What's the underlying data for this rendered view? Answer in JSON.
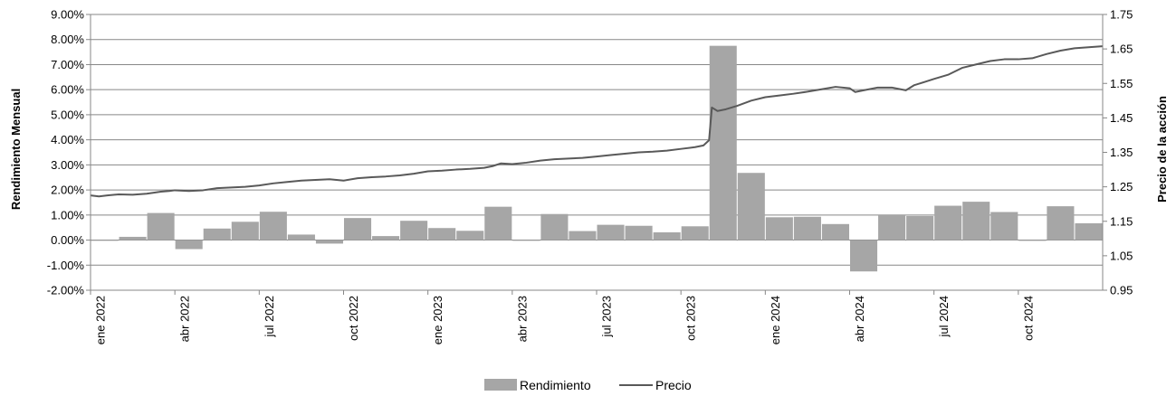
{
  "chart_data": {
    "type": "bar+line",
    "title": "",
    "y_left": {
      "label": "Rendimiento Mensual",
      "lim": [
        -0.02,
        0.09
      ],
      "ticks": [
        -0.02,
        -0.01,
        0.0,
        0.01,
        0.02,
        0.03,
        0.04,
        0.05,
        0.06,
        0.07,
        0.08,
        0.09
      ],
      "tick_labels": [
        "-2.00%",
        "-1.00%",
        "0.00%",
        "1.00%",
        "2.00%",
        "3.00%",
        "4.00%",
        "5.00%",
        "6.00%",
        "7.00%",
        "8.00%",
        "9.00%"
      ]
    },
    "y_right": {
      "label": "Precio de la acción",
      "lim": [
        0.95,
        1.75
      ],
      "ticks": [
        0.95,
        1.05,
        1.15,
        1.25,
        1.35,
        1.45,
        1.55,
        1.65,
        1.75
      ],
      "tick_labels": [
        "0.95",
        "1.05",
        "1.15",
        "1.25",
        "1.35",
        "1.45",
        "1.55",
        "1.65",
        "1.75"
      ]
    },
    "x_tick_labels": [
      {
        "month": 0,
        "label": "ene 2022"
      },
      {
        "month": 3,
        "label": "abr 2022"
      },
      {
        "month": 6,
        "label": "jul 2022"
      },
      {
        "month": 9,
        "label": "oct 2022"
      },
      {
        "month": 12,
        "label": "ene 2023"
      },
      {
        "month": 15,
        "label": "abr 2023"
      },
      {
        "month": 18,
        "label": "jul 2023"
      },
      {
        "month": 21,
        "label": "oct 2023"
      },
      {
        "month": 24,
        "label": "ene 2024"
      },
      {
        "month": 27,
        "label": "abr 2024"
      },
      {
        "month": 30,
        "label": "jul 2024"
      },
      {
        "month": 33,
        "label": "oct 2024"
      }
    ],
    "months": [
      "ene 2022",
      "feb 2022",
      "mar 2022",
      "abr 2022",
      "may 2022",
      "jun 2022",
      "jul 2022",
      "ago 2022",
      "sep 2022",
      "oct 2022",
      "nov 2022",
      "dic 2022",
      "ene 2023",
      "feb 2023",
      "mar 2023",
      "abr 2023",
      "may 2023",
      "jun 2023",
      "jul 2023",
      "ago 2023",
      "sep 2023",
      "oct 2023",
      "nov 2023",
      "dic 2023",
      "ene 2024",
      "feb 2024",
      "mar 2024",
      "abr 2024",
      "may 2024",
      "jun 2024",
      "jul 2024",
      "ago 2024",
      "sep 2024",
      "oct 2024",
      "nov 2024",
      "dic 2024"
    ],
    "series": [
      {
        "name": "Rendimiento",
        "type": "bar",
        "axis": "left",
        "color": "#a6a6a6",
        "values": [
          0.0,
          0.0013,
          0.0108,
          -0.0036,
          0.0046,
          0.0073,
          0.0113,
          0.0022,
          -0.0014,
          0.0088,
          0.0016,
          0.0077,
          0.0048,
          0.0037,
          0.0133,
          0.0,
          0.0104,
          0.0036,
          0.0061,
          0.0057,
          0.0031,
          0.0055,
          0.0775,
          0.0268,
          0.0091,
          0.0093,
          0.0064,
          -0.0125,
          0.0099,
          0.0096,
          0.0137,
          0.0153,
          0.0112,
          -0.0003,
          0.0135,
          0.0067
        ]
      },
      {
        "name": "Precio",
        "type": "line",
        "axis": "right",
        "color": "#595959",
        "x": [
          0.0,
          0.3,
          0.6,
          1.0,
          1.5,
          2.0,
          2.5,
          2.8,
          3.0,
          3.5,
          4.0,
          4.5,
          5.0,
          5.5,
          6.0,
          6.5,
          7.0,
          7.5,
          8.0,
          8.5,
          9.0,
          9.5,
          10.0,
          10.5,
          11.0,
          11.5,
          12.0,
          12.5,
          13.0,
          13.5,
          14.0,
          14.3,
          14.6,
          15.0,
          15.5,
          16.0,
          16.5,
          17.0,
          17.5,
          18.0,
          18.5,
          19.0,
          19.5,
          20.0,
          20.5,
          21.0,
          21.5,
          21.8,
          22.0,
          22.1,
          22.3,
          22.6,
          23.0,
          23.5,
          24.0,
          24.5,
          25.0,
          25.5,
          26.0,
          26.5,
          27.0,
          27.2,
          27.5,
          28.0,
          28.5,
          29.0,
          29.3,
          29.7,
          30.0,
          30.5,
          31.0,
          31.5,
          32.0,
          32.5,
          33.0,
          33.5,
          34.0,
          34.5,
          35.0,
          35.5,
          36.0
        ],
        "values": [
          1.225,
          1.222,
          1.225,
          1.228,
          1.227,
          1.23,
          1.236,
          1.238,
          1.24,
          1.238,
          1.24,
          1.246,
          1.248,
          1.25,
          1.254,
          1.26,
          1.264,
          1.268,
          1.27,
          1.272,
          1.268,
          1.275,
          1.278,
          1.28,
          1.283,
          1.288,
          1.295,
          1.297,
          1.3,
          1.302,
          1.305,
          1.31,
          1.318,
          1.316,
          1.32,
          1.326,
          1.33,
          1.332,
          1.334,
          1.338,
          1.342,
          1.346,
          1.35,
          1.352,
          1.355,
          1.36,
          1.365,
          1.37,
          1.385,
          1.48,
          1.47,
          1.475,
          1.485,
          1.5,
          1.51,
          1.515,
          1.52,
          1.526,
          1.533,
          1.54,
          1.536,
          1.525,
          1.53,
          1.538,
          1.538,
          1.53,
          1.545,
          1.555,
          1.563,
          1.575,
          1.595,
          1.605,
          1.615,
          1.62,
          1.62,
          1.623,
          1.635,
          1.645,
          1.652,
          1.655,
          1.658
        ]
      }
    ],
    "legend": {
      "position": "bottom",
      "items": [
        {
          "label": "Rendimiento",
          "type": "bar",
          "color": "#a6a6a6"
        },
        {
          "label": "Precio",
          "type": "line",
          "color": "#595959"
        }
      ]
    },
    "grid": true
  }
}
